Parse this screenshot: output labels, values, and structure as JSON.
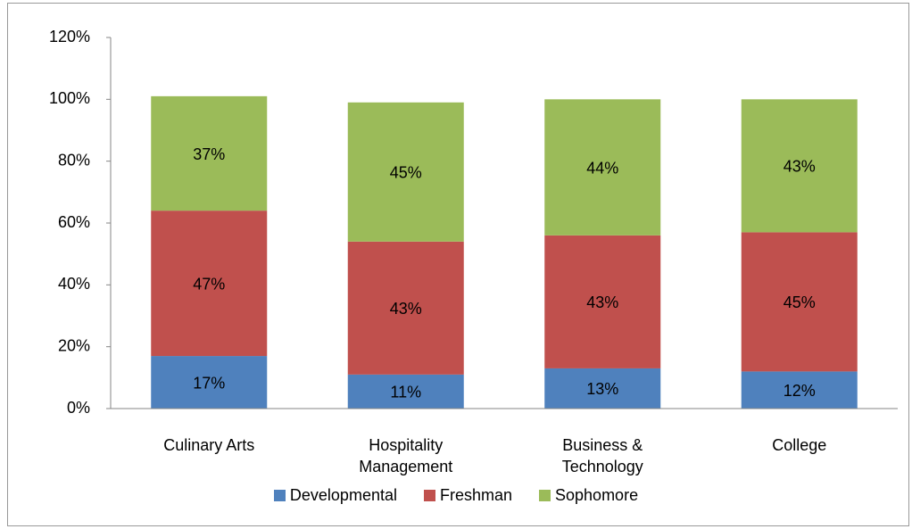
{
  "chart_data": {
    "type": "stacked_bar",
    "categories": [
      "Culinary Arts",
      "Hospitality Management",
      "Business & Technology",
      "College"
    ],
    "series": [
      {
        "name": "Developmental",
        "color": "#4f81bd",
        "values": [
          17,
          11,
          13,
          12
        ],
        "value_labels": [
          "17%",
          "11%",
          "13%",
          "12%"
        ]
      },
      {
        "name": "Freshman",
        "color": "#c0504d",
        "values": [
          47,
          43,
          43,
          45
        ],
        "value_labels": [
          "47%",
          "43%",
          "43%",
          "45%"
        ]
      },
      {
        "name": "Sophomore",
        "color": "#9bbb59",
        "values": [
          37,
          45,
          44,
          43
        ],
        "value_labels": [
          "37%",
          "45%",
          "44%",
          "43%"
        ]
      }
    ],
    "ylim": [
      0,
      120
    ],
    "yticks": [
      {
        "value": 0,
        "label": "0%"
      },
      {
        "value": 20,
        "label": "20%"
      },
      {
        "value": 40,
        "label": "40%"
      },
      {
        "value": 60,
        "label": "60%"
      },
      {
        "value": 80,
        "label": "80%"
      },
      {
        "value": 100,
        "label": "100%"
      },
      {
        "value": 120,
        "label": "120%"
      }
    ],
    "grid": false,
    "legend": "bottom"
  }
}
